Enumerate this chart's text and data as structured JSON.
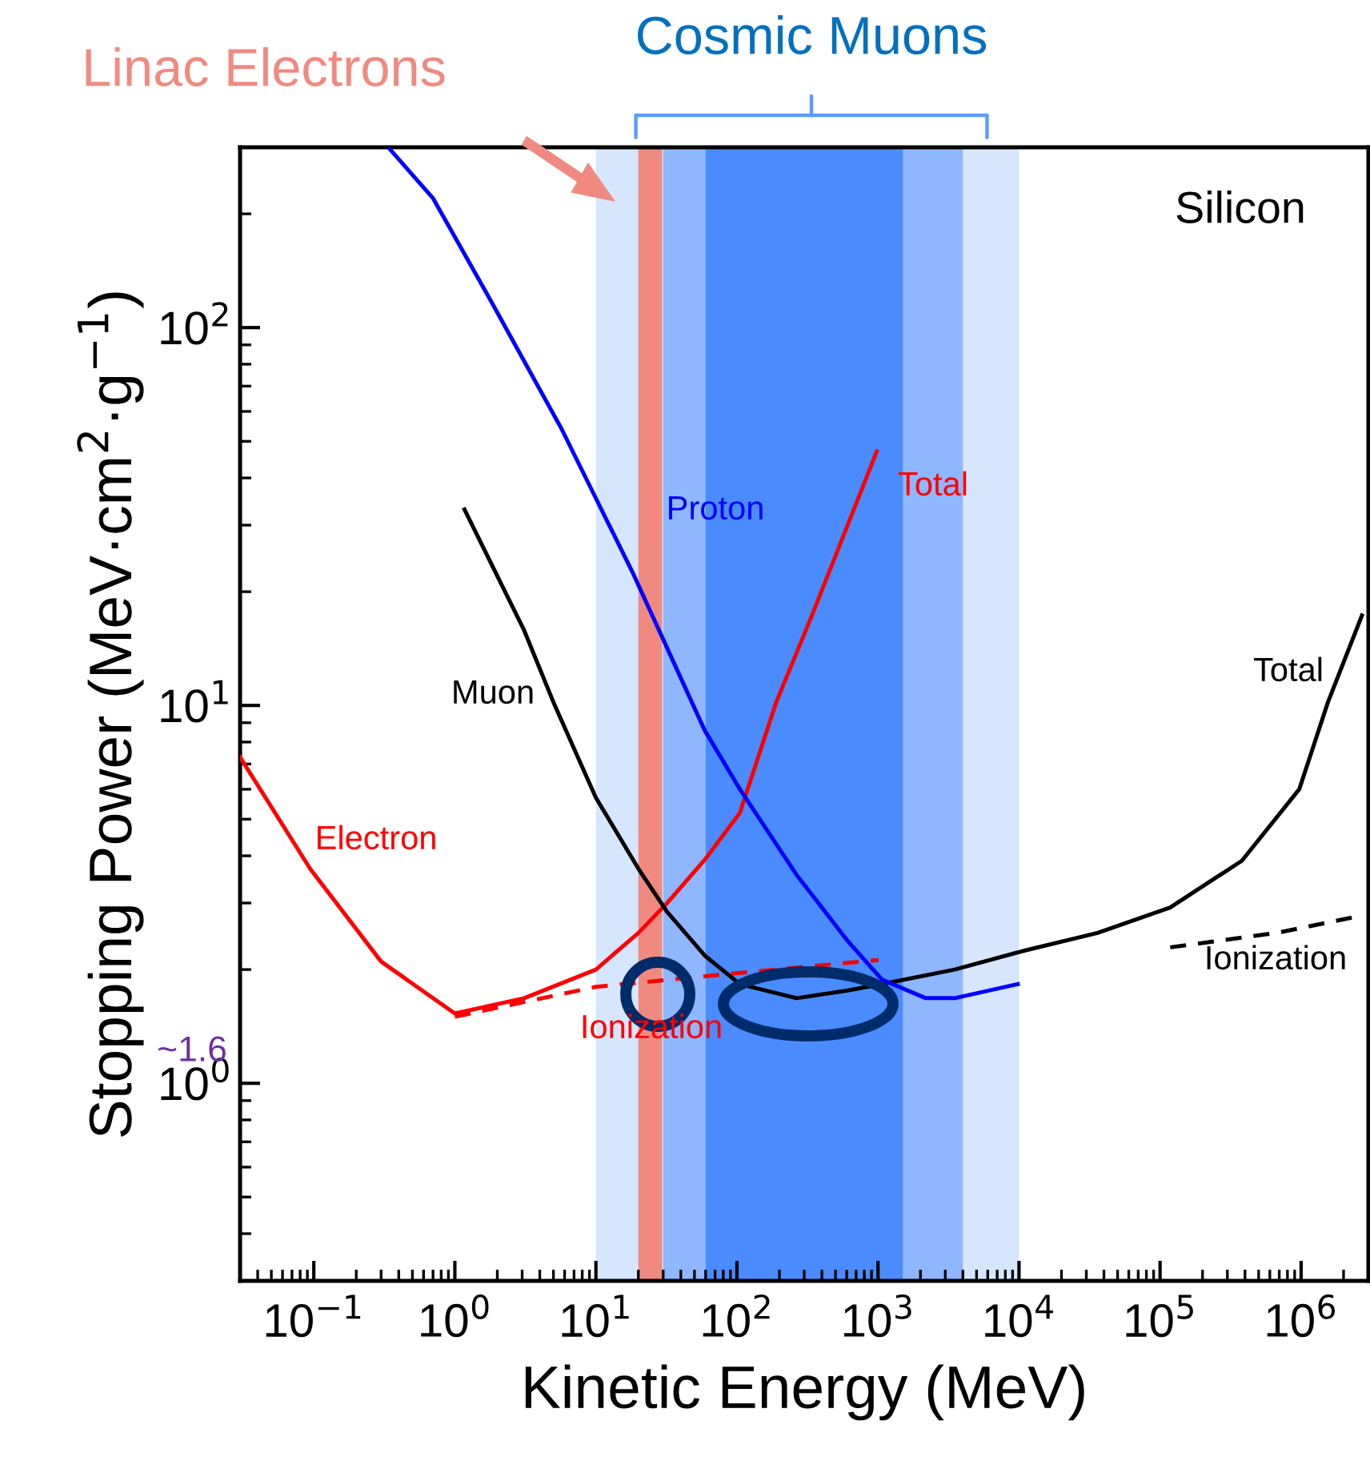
{
  "chart_data": {
    "type": "line",
    "xlabel": "Kinetic Energy (MeV)",
    "ylabel": "Stopping Power (MeV·cm$^{2}$·g$^{−1}$)",
    "log": "xy",
    "xlim": [
      0.03,
      3000000
    ],
    "ylim": [
      0.3,
      300
    ],
    "xticks": [
      {
        "value": 0.1,
        "label": "10$^{−1}$"
      },
      {
        "value": 1,
        "label": "10$^{0}$"
      },
      {
        "value": 10,
        "label": "10$^{1}$"
      },
      {
        "value": 100,
        "label": "10$^{2}$"
      },
      {
        "value": 1000,
        "label": "10$^{3}$"
      },
      {
        "value": 10000,
        "label": "10$^{4}$"
      },
      {
        "value": 100000,
        "label": "10$^{5}$"
      },
      {
        "value": 1000000,
        "label": "10$^{6}$"
      }
    ],
    "yticks": [
      {
        "value": 1,
        "label": "10$^{0}$"
      },
      {
        "value": 10,
        "label": "10$^{1}$"
      },
      {
        "value": 100,
        "label": "10$^{2}$"
      }
    ],
    "grid": false,
    "legend": false,
    "series": [
      {
        "color": "#ff0000",
        "line_style": "solid",
        "x": [
          0.03,
          0.094,
          0.3,
          1.0,
          3.1,
          10,
          20,
          32,
          59,
          105,
          190,
          340,
          980
        ],
        "values": [
          7.3,
          3.7,
          2.1,
          1.53,
          1.68,
          2.0,
          2.5,
          3.0,
          3.9,
          5.2,
          10.2,
          17.3,
          47
        ]
      },
      {
        "color": "#ff0000",
        "line_style": "dashed",
        "x": [
          1.0,
          10,
          105,
          1010
        ],
        "values": [
          1.5,
          1.8,
          1.96,
          2.12
        ]
      },
      {
        "color": "#000000",
        "line_style": "solid",
        "x": [
          1.17,
          3.1,
          5.0,
          10,
          20,
          32,
          59,
          105,
          265,
          610,
          1070,
          3500,
          11200,
          36000,
          118000,
          380000,
          970000,
          1550000,
          2700000
        ],
        "values": [
          33,
          15.8,
          10.2,
          5.7,
          3.7,
          2.84,
          2.18,
          1.83,
          1.68,
          1.76,
          1.83,
          2.0,
          2.25,
          2.5,
          2.92,
          3.88,
          6.0,
          10.2,
          17.3
        ]
      },
      {
        "color": "#000000",
        "line_style": "dashed",
        "x": [
          118000,
          670000,
          2700000
        ],
        "values": [
          2.29,
          2.5,
          2.78
        ]
      },
      {
        "color": "#0000ff",
        "line_style": "solid",
        "x": [
          0.345,
          0.7,
          1.77,
          5.7,
          18.3,
          59,
          105,
          265,
          610,
          1070,
          2180,
          3500,
          9800
        ],
        "values": [
          297,
          220,
          119,
          54,
          22.4,
          8.6,
          6.0,
          3.56,
          2.38,
          1.88,
          1.68,
          1.68,
          1.83
        ]
      }
    ],
    "bands": [
      {
        "axis": "x",
        "from": 10,
        "to": 10000,
        "color": "#d6e6ff"
      },
      {
        "axis": "x",
        "from": 30,
        "to": 4000,
        "color": "#8fb7ff",
        "label": "Cosmic Muons"
      },
      {
        "axis": "x",
        "from": 60,
        "to": 1500,
        "color": "#4a8cff"
      },
      {
        "axis": "x",
        "from": 20,
        "to": 29.5,
        "color": "#f08a80",
        "label": "Linac Electrons"
      }
    ],
    "annotations": [
      "Silicon",
      "Electron",
      "Total",
      "Ionization",
      "Muon",
      "Total",
      "Ionization",
      "Proton",
      "~1.6"
    ]
  }
}
